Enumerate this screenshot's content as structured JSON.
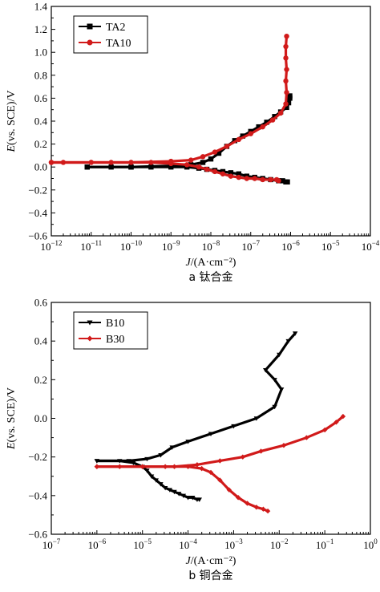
{
  "chart_data": [
    {
      "type": "line",
      "caption": "a 钛合金",
      "ylabel_prefix": "E",
      "ylabel_suffix": "(vs. SCE)/V",
      "xlabel_prefix": "J",
      "xlabel_suffix": "/(A·cm⁻²)",
      "xscale": "log",
      "xlim_exp": [
        -12,
        -4
      ],
      "ylim": [
        -0.6,
        1.4
      ],
      "yticks": [
        -0.6,
        -0.4,
        -0.2,
        0.0,
        0.2,
        0.4,
        0.6,
        0.8,
        1.0,
        1.2,
        1.4
      ],
      "ytick_labels": [
        "−0.6",
        "−0.4",
        "−0.2",
        "0.0",
        "0.2",
        "0.4",
        "0.6",
        "0.8",
        "1.0",
        "1.2",
        "1.4"
      ],
      "xtick_exps": [
        -12,
        -11,
        -10,
        -9,
        -8,
        -7,
        -6,
        -5,
        -4
      ],
      "legend_position": "top-left",
      "series": [
        {
          "name": "TA2",
          "color": "#000000",
          "marker": "square",
          "logJ": [
            -11.1,
            -10.5,
            -10,
            -9.5,
            -9,
            -8.6,
            -8.3,
            -8.1,
            -7.9,
            -7.7,
            -7.5,
            -7.3,
            -7.1,
            -6.9,
            -6.7,
            -6.5,
            -6.3,
            -6.2,
            -6.12,
            -6.08
          ],
          "E": [
            0.0,
            0.0,
            0.0,
            0.0,
            0.0,
            0.0,
            -0.01,
            -0.02,
            -0.03,
            -0.04,
            -0.05,
            -0.06,
            -0.08,
            -0.09,
            -0.1,
            -0.11,
            -0.12,
            -0.12,
            -0.13,
            -0.13
          ],
          "logJ_anodic": [
            -11.1,
            -10,
            -9,
            -8.5,
            -8.2,
            -8.0,
            -7.8,
            -7.6,
            -7.4,
            -7.2,
            -7.0,
            -6.8,
            -6.6,
            -6.4,
            -6.25,
            -6.1,
            -6.05,
            -6.02,
            -6.02
          ],
          "E_anodic": [
            0.0,
            0.0,
            0.01,
            0.02,
            0.04,
            0.07,
            0.12,
            0.18,
            0.23,
            0.27,
            0.31,
            0.35,
            0.39,
            0.44,
            0.48,
            0.52,
            0.56,
            0.6,
            0.62
          ]
        },
        {
          "name": "TA10",
          "color": "#d11a1a",
          "marker": "circle",
          "logJ": [
            -12,
            -11.7,
            -11,
            -10.5,
            -10,
            -9.5,
            -9,
            -8.6,
            -8.3,
            -8.1,
            -7.9,
            -7.7,
            -7.5,
            -7.3,
            -7.1,
            -6.9,
            -6.7,
            -6.5,
            -6.35,
            -6.3
          ],
          "E": [
            0.04,
            0.04,
            0.04,
            0.04,
            0.04,
            0.04,
            0.03,
            0.02,
            0.0,
            -0.02,
            -0.04,
            -0.06,
            -0.08,
            -0.09,
            -0.1,
            -0.1,
            -0.11,
            -0.11,
            -0.11,
            -0.12
          ],
          "logJ_anodic": [
            -12,
            -11,
            -10,
            -9,
            -8.5,
            -8.2,
            -7.9,
            -7.6,
            -7.3,
            -7.0,
            -6.7,
            -6.45,
            -6.25,
            -6.12,
            -6.1,
            -6.12,
            -6.1,
            -6.12,
            -6.12,
            -6.1
          ],
          "E_anodic": [
            0.04,
            0.04,
            0.04,
            0.05,
            0.06,
            0.09,
            0.13,
            0.18,
            0.24,
            0.29,
            0.35,
            0.41,
            0.47,
            0.55,
            0.65,
            0.75,
            0.85,
            0.95,
            1.05,
            1.14
          ]
        }
      ]
    },
    {
      "type": "line",
      "caption": "b 铜合金",
      "ylabel_prefix": "E",
      "ylabel_suffix": "(vs. SCE)/V",
      "xlabel_prefix": "J",
      "xlabel_suffix": "/(A·cm⁻²)",
      "xscale": "log",
      "xlim_exp": [
        -7,
        0
      ],
      "ylim": [
        -0.6,
        0.6
      ],
      "yticks": [
        -0.6,
        -0.4,
        -0.2,
        0.0,
        0.2,
        0.4,
        0.6
      ],
      "ytick_labels": [
        "−0.6",
        "−0.4",
        "−0.2",
        "0.0",
        "0.2",
        "0.4",
        "0.6"
      ],
      "xtick_exps": [
        -7,
        -6,
        -5,
        -4,
        -3,
        -2,
        -1,
        0
      ],
      "legend_position": "top-left",
      "series": [
        {
          "name": "B10",
          "color": "#000000",
          "marker": "triangle-down",
          "logJ": [
            -6,
            -5.5,
            -5.2,
            -5.0,
            -4.9,
            -4.8,
            -4.7,
            -4.6,
            -4.5,
            -4.4,
            -4.3,
            -4.2,
            -4.1,
            -4.0,
            -3.9,
            -3.8,
            -3.75
          ],
          "E": [
            -0.22,
            -0.22,
            -0.23,
            -0.25,
            -0.27,
            -0.3,
            -0.32,
            -0.34,
            -0.36,
            -0.37,
            -0.38,
            -0.39,
            -0.4,
            -0.41,
            -0.41,
            -0.42,
            -0.42
          ],
          "logJ_anodic": [
            -6,
            -5.3,
            -4.9,
            -4.6,
            -4.35,
            -4.0,
            -3.5,
            -3.0,
            -2.5,
            -2.1,
            -1.95,
            -2.1,
            -2.3,
            -2.0,
            -1.8,
            -1.65
          ],
          "E_anodic": [
            -0.22,
            -0.22,
            -0.21,
            -0.19,
            -0.15,
            -0.12,
            -0.08,
            -0.04,
            0.0,
            0.06,
            0.15,
            0.2,
            0.25,
            0.33,
            0.4,
            0.44
          ]
        },
        {
          "name": "B30",
          "color": "#d11a1a",
          "marker": "diamond",
          "logJ": [
            -6,
            -5.5,
            -5,
            -4.5,
            -4.0,
            -3.7,
            -3.5,
            -3.3,
            -3.1,
            -2.9,
            -2.7,
            -2.5,
            -2.35,
            -2.25
          ],
          "E": [
            -0.25,
            -0.25,
            -0.25,
            -0.25,
            -0.25,
            -0.26,
            -0.28,
            -0.32,
            -0.37,
            -0.41,
            -0.44,
            -0.46,
            -0.47,
            -0.48
          ],
          "logJ_anodic": [
            -6,
            -5,
            -4.3,
            -3.8,
            -3.3,
            -2.8,
            -2.4,
            -1.9,
            -1.4,
            -1.0,
            -0.75,
            -0.6
          ],
          "E_anodic": [
            -0.25,
            -0.25,
            -0.25,
            -0.24,
            -0.22,
            -0.2,
            -0.17,
            -0.14,
            -0.1,
            -0.06,
            -0.02,
            0.01
          ]
        }
      ]
    }
  ]
}
